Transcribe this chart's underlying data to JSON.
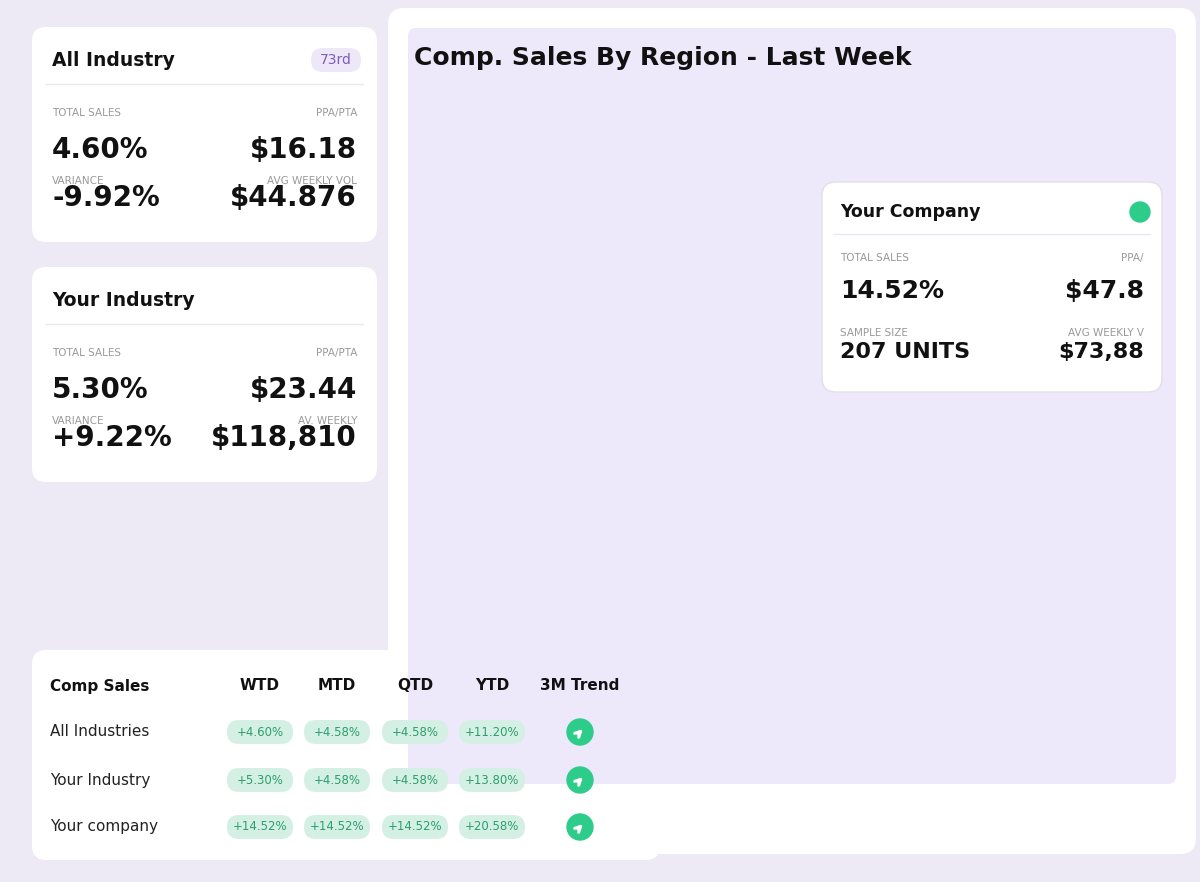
{
  "bg_color": "#edeaf5",
  "title_map": "Comp. Sales By Region - Last Week",
  "all_industry": {
    "title": "All Industry",
    "badge": "73rd",
    "badge_color": "#7c5cbf",
    "badge_bg": "#ede8f7",
    "total_sales_label": "TOTAL SALES",
    "total_sales_val": "4.60%",
    "ppa_label": "PPA/PTA",
    "ppa_val": "$16.18",
    "variance_label": "VARIANCE",
    "variance_val": "-9.92%",
    "avg_label": "AVG WEEKLY VOL",
    "avg_val": "$44.876"
  },
  "your_industry": {
    "title": "Your Industry",
    "total_sales_label": "TOTAL SALES",
    "total_sales_val": "5.30%",
    "ppa_label": "PPA/PTA",
    "ppa_val": "$23.44",
    "variance_label": "VARIANCE",
    "variance_val": "+9.22%",
    "avg_label": "AV. WEEKLY",
    "avg_val": "$118,810"
  },
  "your_company_popup": {
    "title": "Your Company",
    "total_sales_label": "TOTAL SALES",
    "total_sales_val": "14.52%",
    "ppa_label": "PPA/",
    "ppa_val": "$47.8",
    "sample_label": "SAMPLE SIZE",
    "sample_val": "207 UNITS",
    "avg_label": "AVG WEEKLY V",
    "avg_val": "$73,88"
  },
  "table": {
    "header": [
      "Comp Sales",
      "WTD",
      "MTD",
      "QTD",
      "YTD",
      "3M Trend"
    ],
    "rows": [
      {
        "label": "All Industries",
        "wtd": "+4.60%",
        "mtd": "+4.58%",
        "qtd": "+4.58%",
        "ytd": "+11.20%"
      },
      {
        "label": "Your Industry",
        "wtd": "+5.30%",
        "mtd": "+4.58%",
        "qtd": "+4.58%",
        "ytd": "+13.80%"
      },
      {
        "label": "Your company",
        "wtd": "+14.52%",
        "mtd": "+14.52%",
        "qtd": "+14.52%",
        "ytd": "+20.58%"
      }
    ],
    "pill_bg": "#d4f0e4",
    "pill_text": "#2d9e6e",
    "trend_bg": "#2ecc8a"
  },
  "state_colors": {
    "Washington": "#7b2fff",
    "Oregon": "#7b2fff",
    "California": "#7b2fff",
    "Nevada": "#7b2fff",
    "Idaho": "#7b2fff",
    "Montana": "#5c16c5",
    "Wyoming": "#5c16c5",
    "Utah": "#7b2fff",
    "Colorado": "#5c16c5",
    "Arizona": "#7b2fff",
    "New Mexico": "#7b2fff",
    "North Dakota": "#7b2fff",
    "South Dakota": "#7b2fff",
    "Nebraska": "#7b2fff",
    "Kansas": "#7b2fff",
    "Oklahoma": "#7b2fff",
    "Texas": "#ede8fa",
    "Minnesota": "#7b2fff",
    "Iowa": "#ddd6fe",
    "Missouri": "#ddd6fe",
    "Wisconsin": "#ddd6fe",
    "Illinois": "#ddd6fe",
    "Michigan": "#ddd6fe",
    "Indiana": "#ddd6fe",
    "Ohio": "#ddd6fe",
    "Arkansas": "#ddd6fe",
    "Louisiana": "#ddd6fe",
    "Mississippi": "#5c16c5",
    "Alabama": "#ddd6fe",
    "Tennessee": "#ddd6fe",
    "Kentucky": "#ddd6fe",
    "Georgia": "#ddd6fe",
    "Florida": "#ddd6fe",
    "South Carolina": "#ddd6fe",
    "North Carolina": "#ddd6fe",
    "Virginia": "#ddd6fe",
    "West Virginia": "#ddd6fe",
    "Maryland": "#ddd6fe",
    "Delaware": "#ddd6fe",
    "New Jersey": "#ddd6fe",
    "Pennsylvania": "#ddd6fe",
    "New York": "#ddd6fe",
    "Connecticut": "#ddd6fe",
    "Rhode Island": "#ddd6fe",
    "Massachusetts": "#ddd6fe",
    "Vermont": "#ddd6fe",
    "New Hampshire": "#ddd6fe",
    "Maine": "#ddd6fe",
    "Alaska": "#ede8fa",
    "Hawaii": "#5c16c5",
    "District of Columbia": "#ddd6fe"
  }
}
